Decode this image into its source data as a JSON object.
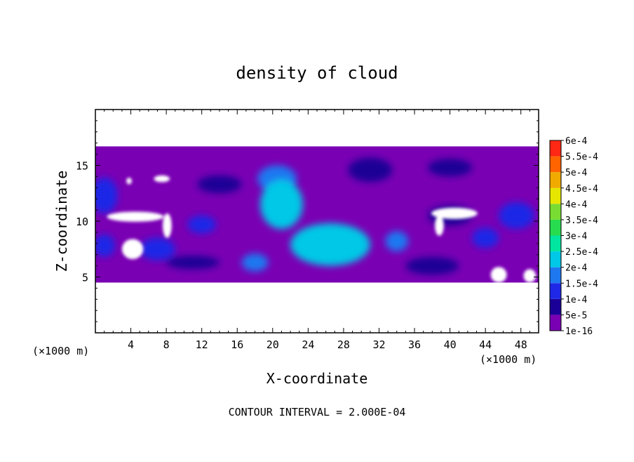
{
  "chart_data": {
    "type": "heatmap",
    "title": "density of cloud",
    "xlabel": "X-coordinate",
    "ylabel": "Z-coordinate",
    "x_unit": "(×1000 m)",
    "z_unit": "(×1000 m)",
    "footer": "CONTOUR INTERVAL = 2.000E-04",
    "xlim": [
      0,
      50
    ],
    "ylim": [
      0,
      20
    ],
    "x_ticks": [
      "4",
      "8",
      "12",
      "16",
      "20",
      "24",
      "28",
      "32",
      "36",
      "40",
      "44",
      "48"
    ],
    "y_ticks": [
      "5",
      "10",
      "15"
    ],
    "cloud_layer": {
      "z_bottom": 4.5,
      "z_top": 16.7
    },
    "colorbar": {
      "levels": [
        "1e-16",
        "5e-5",
        "1e-4",
        "1.5e-4",
        "2e-4",
        "2.5e-4",
        "3e-4",
        "3.5e-4",
        "4e-4",
        "4.5e-4",
        "5e-4",
        "5.5e-4",
        "6e-4"
      ],
      "colors": [
        "#7a00b4",
        "#1a0096",
        "#1e28e6",
        "#1e78f0",
        "#00c8e6",
        "#00e6a0",
        "#28dc50",
        "#78dc32",
        "#e6e600",
        "#f0aa00",
        "#ff6400",
        "#ff2814",
        "#ff8c8c"
      ]
    },
    "features": [
      {
        "x": 20.5,
        "z": 13.8,
        "sx": 2.2,
        "sy": 1.2,
        "level": 3
      },
      {
        "x": 21,
        "z": 11.5,
        "sx": 2.4,
        "sy": 2.2,
        "level": 4
      },
      {
        "x": 26.5,
        "z": 7.9,
        "sx": 4.5,
        "sy": 1.9,
        "level": 4
      },
      {
        "x": 26.5,
        "z": 8.4,
        "sx": 3,
        "sy": 1.2,
        "level": 4
      },
      {
        "x": 34,
        "z": 8.2,
        "sx": 1.3,
        "sy": 0.9,
        "level": 3
      },
      {
        "x": 7,
        "z": 7.5,
        "sx": 2,
        "sy": 1,
        "level": 2
      },
      {
        "x": 12,
        "z": 9.7,
        "sx": 1.6,
        "sy": 0.8,
        "level": 2
      },
      {
        "x": 18,
        "z": 6.3,
        "sx": 1.5,
        "sy": 0.8,
        "level": 3
      },
      {
        "x": 47.5,
        "z": 10.5,
        "sx": 2,
        "sy": 1.2,
        "level": 2
      },
      {
        "x": 44,
        "z": 8.5,
        "sx": 1.5,
        "sy": 0.9,
        "level": 2
      },
      {
        "x": 31,
        "z": 14.6,
        "sx": 2.5,
        "sy": 1.1,
        "level": 1
      },
      {
        "x": 40,
        "z": 14.8,
        "sx": 2.5,
        "sy": 0.8,
        "level": 1
      },
      {
        "x": 1,
        "z": 12.3,
        "sx": 1.5,
        "sy": 1.6,
        "level": 2
      },
      {
        "x": 1,
        "z": 7.8,
        "sx": 1.2,
        "sy": 1,
        "level": 2
      },
      {
        "x": 38,
        "z": 6,
        "sx": 3,
        "sy": 0.8,
        "level": 1
      },
      {
        "x": 14,
        "z": 13.3,
        "sx": 2.5,
        "sy": 0.8,
        "level": 1
      },
      {
        "x": 40,
        "z": 10.5,
        "sx": 2.5,
        "sy": 0.9,
        "level": 1
      },
      {
        "x": 11,
        "z": 6.3,
        "sx": 3,
        "sy": 0.6,
        "level": 1
      }
    ],
    "clear_regions": [
      {
        "x": 4.5,
        "z": 10.4,
        "sx": 3.2,
        "sy": 0.45
      },
      {
        "x": 8.1,
        "z": 9.6,
        "sx": 0.5,
        "sy": 1.1
      },
      {
        "x": 4.2,
        "z": 7.5,
        "sx": 1.2,
        "sy": 0.9
      },
      {
        "x": 40.5,
        "z": 10.7,
        "sx": 2.6,
        "sy": 0.5
      },
      {
        "x": 38.8,
        "z": 9.6,
        "sx": 0.5,
        "sy": 0.9
      },
      {
        "x": 7.5,
        "z": 13.8,
        "sx": 0.9,
        "sy": 0.3
      },
      {
        "x": 3.8,
        "z": 13.6,
        "sx": 0.3,
        "sy": 0.3
      },
      {
        "x": 45.5,
        "z": 5.2,
        "sx": 0.9,
        "sy": 0.7
      },
      {
        "x": 49,
        "z": 5.1,
        "sx": 0.7,
        "sy": 0.6
      }
    ]
  }
}
